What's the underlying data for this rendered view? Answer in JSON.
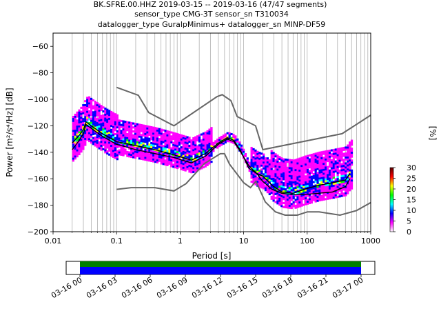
{
  "title_lines": [
    "BK.SFRE.00.HHZ   2019-03-15 -- 2019-03-16  (47/47 segments)",
    "sensor_type CMG-3T sensor_sn T310034",
    "datalogger_type GuralpMinimus+ datalogger_sn MINP-DF59"
  ],
  "chart_data": {
    "type": "heatmap",
    "xlabel": "Period [s]",
    "ylabel": "Power [m²/s⁴/Hz] [dB]",
    "xscale": "log",
    "xlim": [
      0.01,
      1000
    ],
    "ylim": [
      -200,
      -50
    ],
    "x_ticks": [
      0.01,
      0.1,
      1,
      10,
      100,
      1000
    ],
    "x_tick_labels": [
      "0.01",
      "0.1",
      "1",
      "10",
      "100",
      "1000"
    ],
    "y_ticks": [
      -200,
      -180,
      -160,
      -140,
      -120,
      -100,
      -80,
      -60
    ],
    "y_tick_labels": [
      "−200",
      "−180",
      "−160",
      "−140",
      "−120",
      "−100",
      "−80",
      "−60"
    ],
    "grid": "vertical log gridlines",
    "colorbar": {
      "label": "[%]",
      "range": [
        0,
        30
      ],
      "ticks": [
        0,
        5,
        10,
        15,
        20,
        25,
        30
      ],
      "tick_labels": [
        "0",
        "5",
        "10",
        "15",
        "20",
        "25",
        "30"
      ],
      "colors": [
        "#ffffff",
        "#ff00ff",
        "#0000ff",
        "#00ffff",
        "#00ff00",
        "#ffff00",
        "#ff0000",
        "#550000"
      ]
    },
    "noise_model_high": [
      [
        0.1,
        -91
      ],
      [
        0.22,
        -97
      ],
      [
        0.32,
        -110
      ],
      [
        0.8,
        -120
      ],
      [
        3.8,
        -98
      ],
      [
        4.6,
        -96.5
      ],
      [
        6.3,
        -101
      ],
      [
        7.9,
        -113
      ],
      [
        15.4,
        -120
      ],
      [
        20,
        -138
      ],
      [
        354,
        -126
      ],
      [
        1000,
        -112
      ]
    ],
    "noise_model_low": [
      [
        0.1,
        -168
      ],
      [
        0.17,
        -166.7
      ],
      [
        0.4,
        -166.7
      ],
      [
        0.8,
        -169.2
      ],
      [
        1.24,
        -163.7
      ],
      [
        2.4,
        -148.6
      ],
      [
        4.3,
        -141.1
      ],
      [
        5,
        -141.1
      ],
      [
        6,
        -149
      ],
      [
        10,
        -163
      ],
      [
        12.8,
        -166.7
      ],
      [
        15.6,
        -162
      ],
      [
        21.9,
        -177.5
      ],
      [
        31.6,
        -185
      ],
      [
        45,
        -187.5
      ],
      [
        70,
        -187.5
      ],
      [
        101,
        -185
      ],
      [
        154,
        -185
      ],
      [
        328,
        -187.5
      ],
      [
        600,
        -184
      ],
      [
        1000,
        -178
      ]
    ],
    "mode_line": [
      [
        0.02,
        -133
      ],
      [
        0.025,
        -128
      ],
      [
        0.03,
        -123
      ],
      [
        0.033,
        -117
      ],
      [
        0.04,
        -120
      ],
      [
        0.06,
        -126
      ],
      [
        0.1,
        -132
      ],
      [
        0.2,
        -135
      ],
      [
        0.4,
        -138
      ],
      [
        0.8,
        -142
      ],
      [
        1.5,
        -146
      ],
      [
        2.5,
        -141
      ],
      [
        4,
        -133
      ],
      [
        5.5,
        -129
      ],
      [
        7,
        -131
      ],
      [
        9,
        -139
      ],
      [
        12,
        -152
      ],
      [
        16,
        -156
      ],
      [
        20,
        -158
      ],
      [
        28,
        -165
      ],
      [
        40,
        -170
      ],
      [
        60,
        -171
      ],
      [
        90,
        -168
      ],
      [
        150,
        -165
      ],
      [
        250,
        -163
      ],
      [
        400,
        -161
      ],
      [
        470,
        -156
      ]
    ],
    "mean_line": [
      [
        0.02,
        -138
      ],
      [
        0.025,
        -132
      ],
      [
        0.03,
        -126
      ],
      [
        0.033,
        -119
      ],
      [
        0.04,
        -122
      ],
      [
        0.06,
        -128
      ],
      [
        0.1,
        -134
      ],
      [
        0.2,
        -138
      ],
      [
        0.4,
        -141
      ],
      [
        0.8,
        -144
      ],
      [
        1.5,
        -148
      ],
      [
        2.5,
        -143
      ],
      [
        4,
        -134
      ],
      [
        5.5,
        -130
      ],
      [
        7,
        -132
      ],
      [
        9,
        -140
      ],
      [
        12,
        -150
      ],
      [
        16,
        -156
      ],
      [
        20,
        -162
      ],
      [
        28,
        -168
      ],
      [
        40,
        -171
      ],
      [
        60,
        -172
      ],
      [
        90,
        -172
      ],
      [
        150,
        -171
      ],
      [
        250,
        -170
      ],
      [
        400,
        -166
      ],
      [
        470,
        -160
      ]
    ],
    "availability": {
      "tick_labels": [
        "03-16 00",
        "03-16 03",
        "03-16 06",
        "03-16 09",
        "03-16 12",
        "03-16 15",
        "03-16 18",
        "03-16 21",
        "03-17 00"
      ],
      "data_color": "#0000ff",
      "processed_color": "#008000"
    }
  }
}
